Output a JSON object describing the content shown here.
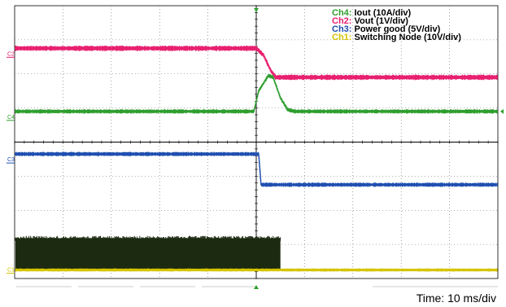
{
  "chart_data": {
    "type": "line",
    "title": "",
    "xlabel": "",
    "ylabel": "",
    "time_label": "Time: 10 ms/div",
    "x_divisions": 10,
    "y_divisions": 8,
    "x_unit": "ms",
    "x_per_div_ms": 10,
    "grid": true,
    "legend_position": "top-right",
    "legend": [
      {
        "ch": "Ch4:",
        "text": "Iout (10A/div)",
        "color": "#2e9e2e"
      },
      {
        "ch": "Ch2:",
        "text": "Vout (1V/div)",
        "color": "#e8206f"
      },
      {
        "ch": "Ch3:",
        "text": "Power good (5V/div)",
        "color": "#1f4fb0"
      },
      {
        "ch": "Ch1:",
        "text": "Switching Node (10V/div)",
        "color": "#d4c400"
      }
    ],
    "series": [
      {
        "name": "Vout",
        "channel_marker": "C2",
        "color": "#e8206f",
        "units": "div",
        "points": [
          [
            0,
            6.75
          ],
          [
            50,
            6.75
          ],
          [
            51.5,
            6.55
          ],
          [
            53,
            6.1
          ],
          [
            54,
            5.9
          ],
          [
            100,
            5.9
          ]
        ]
      },
      {
        "name": "Iout",
        "channel_marker": "C4",
        "color": "#2e9e2e",
        "units": "div",
        "points": [
          [
            0,
            4.9
          ],
          [
            49.5,
            4.9
          ],
          [
            50.5,
            5.5
          ],
          [
            52.5,
            5.95
          ],
          [
            53.5,
            5.9
          ],
          [
            55,
            5.3
          ],
          [
            56.5,
            4.95
          ],
          [
            58,
            4.9
          ],
          [
            100,
            4.9
          ]
        ]
      },
      {
        "name": "Power good",
        "channel_marker": "C3",
        "color": "#1f4fb0",
        "units": "div",
        "points": [
          [
            0,
            3.65
          ],
          [
            50.5,
            3.65
          ],
          [
            51,
            2.75
          ],
          [
            100,
            2.75
          ]
        ]
      },
      {
        "name": "Switching Node",
        "channel_marker": "C1",
        "color": "#d4c400",
        "units": "div",
        "baseline_div": 0.25,
        "switching_until_ms": 55,
        "switching_top_div": 1.25
      }
    ]
  }
}
